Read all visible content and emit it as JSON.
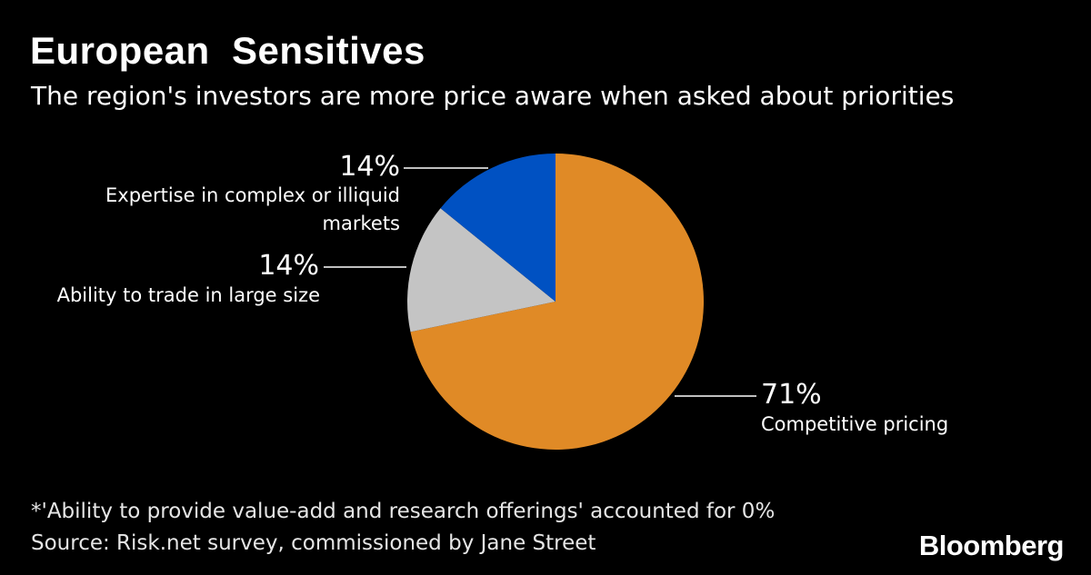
{
  "header": {
    "title": "European  Sensitives",
    "subtitle": "The region's investors are more price aware when asked about priorities"
  },
  "chart_data": {
    "type": "pie",
    "title": "European  Sensitives",
    "subtitle": "The region's investors are more price aware when asked about priorities",
    "start": "12 o'clock",
    "direction": "clockwise",
    "slices": [
      {
        "label": "Competitive pricing",
        "value": 71,
        "value_label": "71%",
        "color": "#e08a26"
      },
      {
        "label": "Ability to trade in large size",
        "value": 14,
        "value_label": "14%",
        "color": "#c4c4c4"
      },
      {
        "label": "Expertise in complex or illiquid markets",
        "label_lines": [
          "Expertise in complex or illiquid",
          "markets"
        ],
        "value": 14,
        "value_label": "14%",
        "color": "#0051c2"
      }
    ]
  },
  "footer": {
    "note": "*'Ability to provide value-add and research offerings' accounted for 0%",
    "source": "Source: Risk.net survey, commissioned by Jane Street",
    "brand": "Bloomberg"
  }
}
